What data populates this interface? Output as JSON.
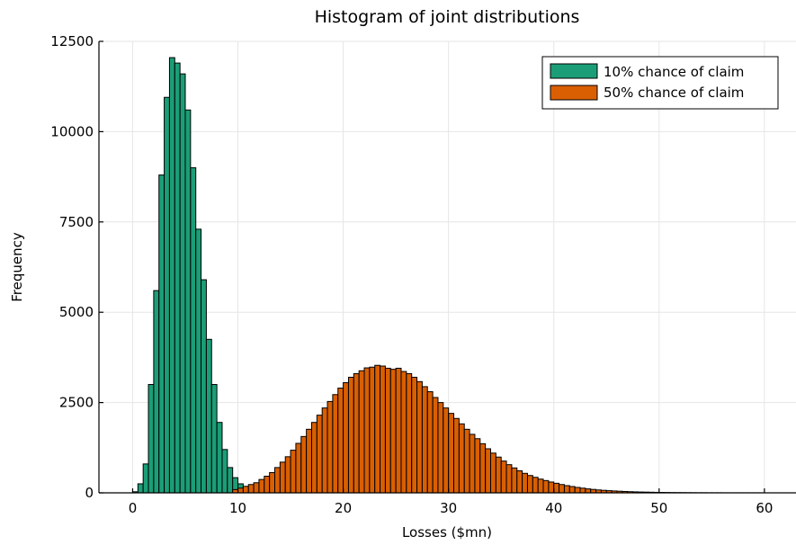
{
  "chart_data": {
    "type": "bar",
    "title": "Histogram of joint distributions",
    "xlabel": "Losses ($mn)",
    "ylabel": "Frequency",
    "xlim": [
      -3.2,
      63
    ],
    "ylim": [
      0,
      12500
    ],
    "x_ticks": [
      0,
      10,
      20,
      30,
      40,
      50,
      60
    ],
    "y_ticks": [
      0,
      2500,
      5000,
      7500,
      10000,
      12500
    ],
    "grid": true,
    "legend_position": "top-right",
    "bin_width": 0.5,
    "series": [
      {
        "name": "10% chance of claim",
        "color": "#1b9e77",
        "bin_start": 0,
        "values": [
          30,
          250,
          800,
          3000,
          5600,
          8800,
          10950,
          12050,
          11900,
          11600,
          10600,
          9000,
          7300,
          5900,
          4250,
          3000,
          1950,
          1200,
          700,
          420,
          250,
          130,
          70,
          40,
          20,
          10
        ]
      },
      {
        "name": "50% chance of claim",
        "color": "#d95f02",
        "bin_start": 9.5,
        "values": [
          90,
          130,
          180,
          230,
          280,
          370,
          460,
          560,
          700,
          850,
          1000,
          1180,
          1370,
          1560,
          1760,
          1950,
          2150,
          2350,
          2530,
          2720,
          2900,
          3050,
          3200,
          3300,
          3380,
          3460,
          3480,
          3530,
          3510,
          3450,
          3420,
          3450,
          3360,
          3300,
          3200,
          3080,
          2940,
          2800,
          2640,
          2500,
          2350,
          2200,
          2060,
          1910,
          1760,
          1620,
          1500,
          1360,
          1220,
          1100,
          990,
          880,
          780,
          690,
          610,
          540,
          480,
          430,
          380,
          340,
          300,
          265,
          230,
          200,
          175,
          150,
          130,
          110,
          95,
          80,
          70,
          60,
          52,
          45,
          38,
          32,
          27,
          23,
          20,
          17,
          14,
          12,
          10,
          8,
          7,
          6,
          5,
          4,
          3,
          3,
          2,
          2,
          2,
          1,
          1,
          1,
          1,
          1,
          1,
          1,
          1
        ]
      }
    ]
  }
}
